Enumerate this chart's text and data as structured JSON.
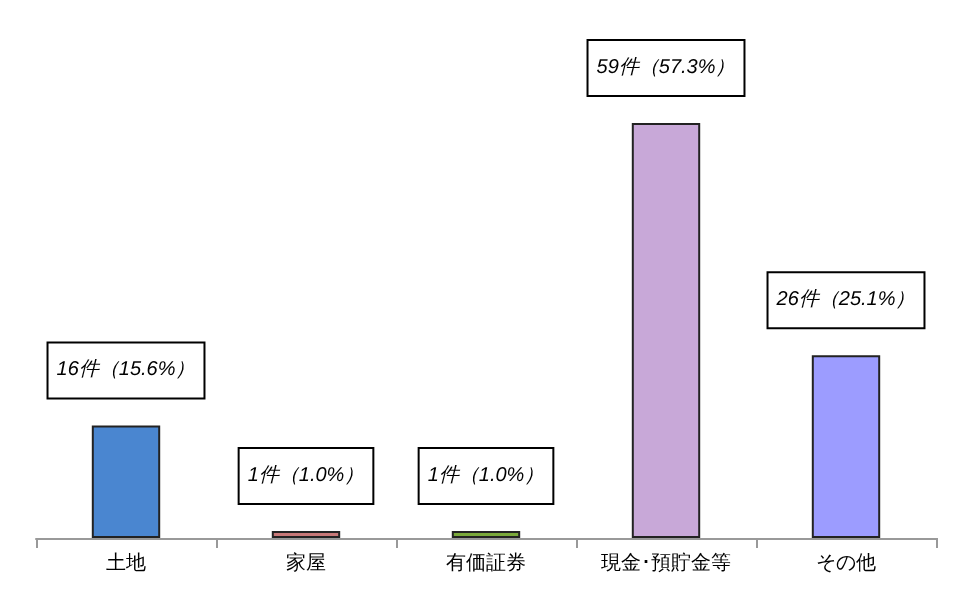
{
  "chart_data": {
    "type": "bar",
    "categories": [
      "土地",
      "家屋",
      "有価証券",
      "現金･預貯金等",
      "その他"
    ],
    "values": [
      16,
      1,
      1,
      59,
      26
    ],
    "colors": [
      "#4a86d0",
      "#c87878",
      "#7aa83a",
      "#c8a8d8",
      "#9c9cff"
    ],
    "value_labels": [
      "16件（15.6%）",
      "1件（1.0%）",
      "1件（1.0%）",
      "59件（57.3%）",
      "26件（25.1%）"
    ]
  }
}
